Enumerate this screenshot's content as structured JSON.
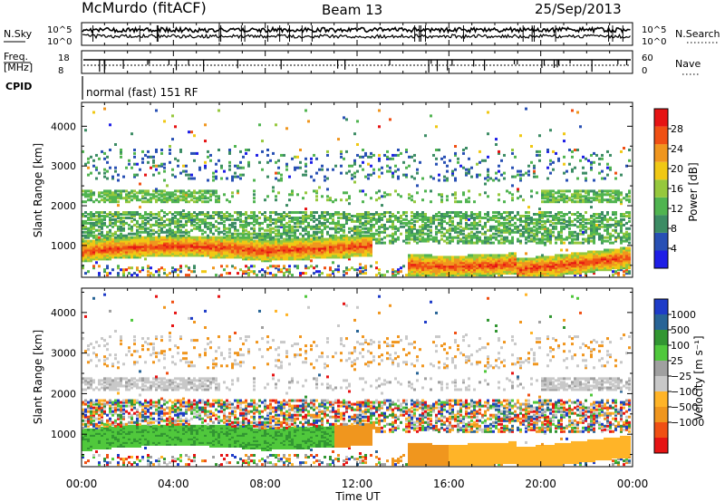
{
  "header": {
    "station": "McMurdo (fitACF)",
    "beam": "Beam 13",
    "date": "25/Sep/2013"
  },
  "noise_panel": {
    "left_label": "N.Sky",
    "right_label": "N.Search",
    "left_ticks": [
      "10^5",
      "10^0"
    ],
    "right_ticks": [
      "10^5",
      "10^0"
    ]
  },
  "freq_panel": {
    "left_label_1": "Freq.",
    "left_label_2": "[MHz]",
    "right_label": "Nave",
    "left_ticks": [
      "18",
      "8"
    ],
    "right_ticks": [
      "60",
      "0"
    ]
  },
  "cpid": {
    "label": "CPID",
    "value": "normal (fast) 151 RF"
  },
  "x_axis": {
    "label": "Time UT",
    "ticks": [
      "00:00",
      "04:00",
      "08:00",
      "12:00",
      "16:00",
      "20:00",
      "00:00"
    ]
  },
  "colors": {
    "power_scale": [
      "#1e1ee6",
      "#2850b4",
      "#3c8c64",
      "#50b450",
      "#96c83c",
      "#f0c814",
      "#f0961e",
      "#f05014",
      "#e61414"
    ],
    "velocity_scale": [
      "#e61414",
      "#f05014",
      "#f0961e",
      "#ffb428",
      "#c8c8c8",
      "#a0a0a0",
      "#50c83c",
      "#329632",
      "#286496",
      "#1e3cc8"
    ]
  },
  "chart_data": [
    {
      "type": "heatmap",
      "name": "power",
      "ylabel": "Slant Range [km]",
      "yticks": [
        1000,
        2000,
        3000,
        4000
      ],
      "ylim": [
        200,
        4600
      ],
      "xlim_hours": [
        0,
        24
      ],
      "colorbar": {
        "label": "Power [dB]",
        "ticks": [
          "4",
          "8",
          "12",
          "16",
          "20",
          "24",
          "28"
        ],
        "range": [
          0,
          32
        ]
      }
    },
    {
      "type": "heatmap",
      "name": "velocity",
      "ylabel": "Slant Range [km]",
      "yticks": [
        1000,
        2000,
        3000,
        4000
      ],
      "ylim": [
        200,
        4600
      ],
      "xlim_hours": [
        0,
        24
      ],
      "colorbar": {
        "label": "Velocity [m s⁻¹]",
        "ticks": [
          "1000",
          "500",
          "100",
          "25",
          "−25",
          "−100",
          "−500",
          "−1000"
        ]
      }
    }
  ]
}
